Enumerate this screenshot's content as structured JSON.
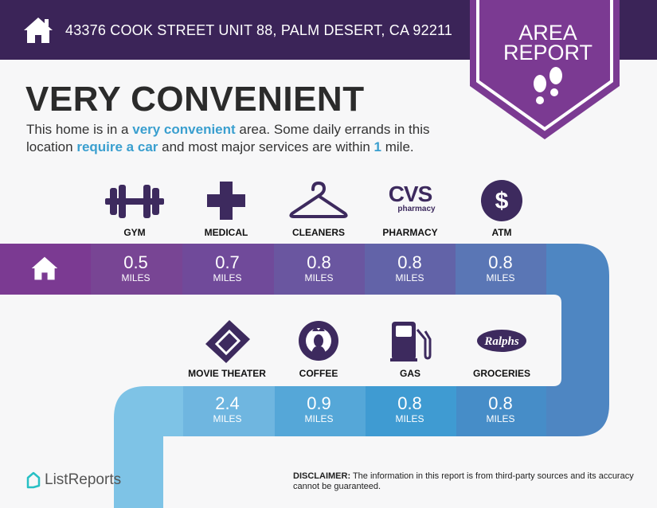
{
  "header": {
    "address": "43376 COOK STREET UNIT 88, PALM DESERT, CA 92211",
    "icon": "home-icon"
  },
  "badge": {
    "line1": "AREA",
    "line2": "REPORT",
    "icon": "footprints-icon"
  },
  "title": "VERY CONVENIENT",
  "description": {
    "p1": "This home is in a ",
    "h1": "very convenient",
    "p2": " area. Some daily errands in this location ",
    "h2": "require a car",
    "p3": " and most major services are within ",
    "h3": "1",
    "p4": " mile."
  },
  "top_row": [
    {
      "label": "GYM",
      "value": "0.5",
      "unit": "MILES",
      "icon": "dumbbell-icon"
    },
    {
      "label": "MEDICAL",
      "value": "0.7",
      "unit": "MILES",
      "icon": "medical-cross-icon"
    },
    {
      "label": "CLEANERS",
      "value": "0.8",
      "unit": "MILES",
      "icon": "hanger-icon"
    },
    {
      "label": "PHARMACY",
      "value": "0.8",
      "unit": "MILES",
      "icon": "cvs-logo",
      "logo_text": "CVS",
      "logo_sub": "pharmacy"
    },
    {
      "label": "ATM",
      "value": "0.8",
      "unit": "MILES",
      "icon": "dollar-icon"
    }
  ],
  "bottom_row": [
    {
      "label": "MOVIE THEATER",
      "value": "2.4",
      "unit": "MILES",
      "icon": "ticket-icon"
    },
    {
      "label": "COFFEE",
      "value": "0.9",
      "unit": "MILES",
      "icon": "starbucks-logo"
    },
    {
      "label": "GAS",
      "value": "0.8",
      "unit": "MILES",
      "icon": "gas-pump-icon"
    },
    {
      "label": "GROCERIES",
      "value": "0.8",
      "unit": "MILES",
      "icon": "ralphs-logo",
      "logo_text": "Ralphs"
    }
  ],
  "footer": {
    "brand": "ListReports",
    "disclaimer_label": "DISCLAIMER:",
    "disclaimer": " The information in this report is from third-party sources and its accuracy cannot be guaranteed."
  },
  "colors": {
    "header": "#3b2458",
    "badge": "#7b3a92",
    "icon": "#3d2a5e",
    "highlight": "#3a9fcf"
  }
}
